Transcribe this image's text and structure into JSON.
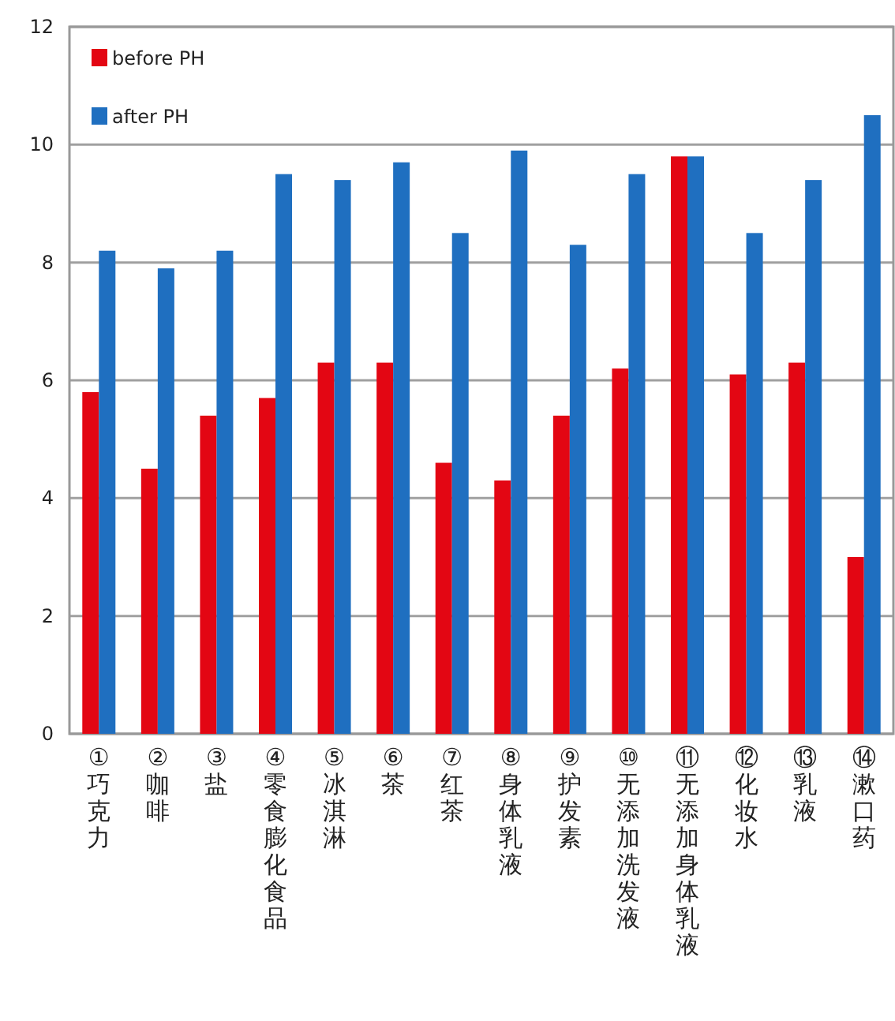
{
  "chart_data": {
    "type": "bar",
    "categories": [
      "①巧克力",
      "②咖啡",
      "③盐",
      "④零食膨化食品",
      "⑤冰淇淋",
      "⑥茶",
      "⑦红茶",
      "⑧身体乳液",
      "⑨护发素",
      "⑩无添加洗发液",
      "⑪无添加身体乳液",
      "⑫化妆水",
      "⑬乳液",
      "⑭漱口药"
    ],
    "series": [
      {
        "name": "before PH",
        "color": "#e30613",
        "values": [
          5.8,
          4.5,
          5.4,
          5.7,
          6.3,
          6.3,
          4.6,
          4.3,
          5.4,
          6.2,
          9.8,
          6.1,
          6.3,
          3.0
        ]
      },
      {
        "name": "after PH",
        "color": "#1f6fc0",
        "values": [
          8.2,
          7.9,
          8.2,
          9.5,
          9.4,
          9.7,
          8.5,
          9.9,
          8.3,
          9.5,
          9.8,
          8.5,
          9.4,
          10.5
        ]
      }
    ],
    "ylim": [
      0,
      12
    ],
    "yticks": [
      0,
      2,
      4,
      6,
      8,
      10,
      12
    ],
    "grid": "y",
    "legend": "top left"
  }
}
